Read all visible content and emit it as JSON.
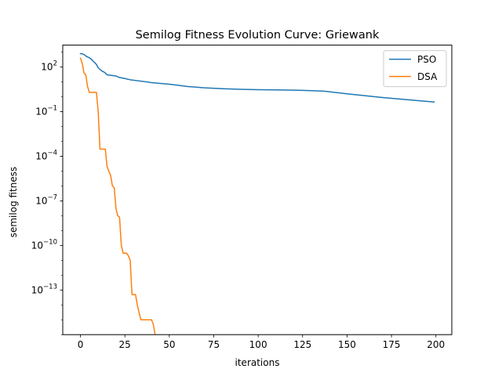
{
  "chart_data": {
    "type": "line",
    "title": "Semilog Fitness Evolution Curve: Griewank",
    "xlabel": "iterations",
    "ylabel": "semilog fitness",
    "y_scale": "log",
    "xlim": [
      -9.95,
      208.95
    ],
    "ylim": [
      1e-16,
      3000
    ],
    "grid": false,
    "legend_position": "top-right",
    "x_ticks": [
      {
        "value": 0,
        "label": "0"
      },
      {
        "value": 25,
        "label": "25"
      },
      {
        "value": 50,
        "label": "50"
      },
      {
        "value": 75,
        "label": "75"
      },
      {
        "value": 100,
        "label": "100"
      },
      {
        "value": 125,
        "label": "125"
      },
      {
        "value": 150,
        "label": "150"
      },
      {
        "value": 175,
        "label": "175"
      },
      {
        "value": 200,
        "label": "200"
      }
    ],
    "y_ticks": [
      {
        "value": 100,
        "base": "10",
        "exp": "2"
      },
      {
        "value": 0.1,
        "base": "10",
        "exp": "−1"
      },
      {
        "value": 0.0001,
        "base": "10",
        "exp": "−4"
      },
      {
        "value": 1e-07,
        "base": "10",
        "exp": "−7"
      },
      {
        "value": 1e-10,
        "base": "10",
        "exp": "−10"
      },
      {
        "value": 1e-13,
        "base": "10",
        "exp": "−13"
      }
    ],
    "series": [
      {
        "name": "PSO",
        "color": "#1f77b4",
        "points": [
          [
            0,
            800
          ],
          [
            1,
            780
          ],
          [
            2,
            700
          ],
          [
            3,
            560
          ],
          [
            4,
            480
          ],
          [
            5,
            420
          ],
          [
            6,
            350
          ],
          [
            7,
            260
          ],
          [
            8,
            200
          ],
          [
            9,
            150
          ],
          [
            10,
            90
          ],
          [
            11,
            70
          ],
          [
            12,
            55
          ],
          [
            13,
            48
          ],
          [
            14,
            40
          ],
          [
            15,
            30
          ],
          [
            17,
            28
          ],
          [
            20,
            25
          ],
          [
            22,
            20
          ],
          [
            25,
            17
          ],
          [
            28,
            14
          ],
          [
            30,
            13
          ],
          [
            35,
            11
          ],
          [
            40,
            9
          ],
          [
            45,
            8
          ],
          [
            50,
            7
          ],
          [
            55,
            6
          ],
          [
            60,
            5
          ],
          [
            70,
            4
          ],
          [
            80,
            3.5
          ],
          [
            90,
            3.2
          ],
          [
            100,
            3
          ],
          [
            110,
            2.9
          ],
          [
            120,
            2.8
          ],
          [
            130,
            2.6
          ],
          [
            137,
            2.4
          ],
          [
            140,
            2.2
          ],
          [
            150,
            1.6
          ],
          [
            160,
            1.2
          ],
          [
            170,
            0.9
          ],
          [
            180,
            0.7
          ],
          [
            190,
            0.55
          ],
          [
            199,
            0.45
          ]
        ]
      },
      {
        "name": "DSA",
        "color": "#ff7f0e",
        "points": [
          [
            0,
            400
          ],
          [
            1,
            180
          ],
          [
            2,
            40
          ],
          [
            3,
            30
          ],
          [
            4,
            5
          ],
          [
            5,
            2
          ],
          [
            9,
            2
          ],
          [
            10,
            0.1
          ],
          [
            11,
            0.0003
          ],
          [
            14,
            0.0003
          ],
          [
            15,
            2e-05
          ],
          [
            17,
            5e-06
          ],
          [
            18,
            1e-06
          ],
          [
            19,
            8e-07
          ],
          [
            20,
            3e-08
          ],
          [
            21,
            1e-08
          ],
          [
            22,
            8e-09
          ],
          [
            23,
            1e-10
          ],
          [
            24,
            3e-11
          ],
          [
            26,
            3e-11
          ],
          [
            27,
            2e-11
          ],
          [
            28,
            1e-11
          ],
          [
            29,
            5e-14
          ],
          [
            31,
            5e-14
          ],
          [
            32,
            1e-14
          ],
          [
            33,
            3e-15
          ],
          [
            34,
            1e-15
          ],
          [
            40,
            1e-15
          ],
          [
            41,
            5e-16
          ],
          [
            42,
            1e-16
          ]
        ]
      }
    ]
  }
}
